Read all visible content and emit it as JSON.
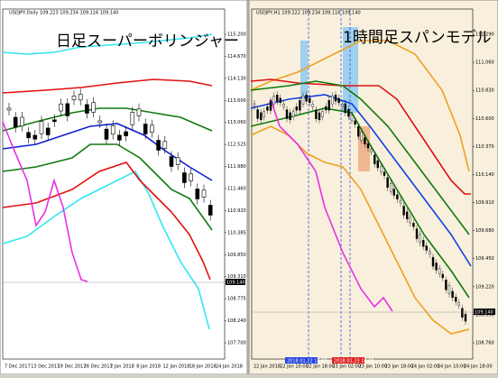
{
  "left": {
    "header": "USDJPY,Daily 109.223 109.234 109.116 109.140",
    "title": "日足スーパーボリンジャー",
    "yticks": [
      "115.200",
      "114.670",
      "114.130",
      "113.600",
      "113.060",
      "112.525",
      "111.980",
      "111.460",
      "110.920",
      "110.385",
      "109.850",
      "109.310",
      "108.775",
      "108.240",
      "107.700"
    ],
    "price": "109.140",
    "xticks": [
      "7 Dec 2017",
      "13 Dec 2017",
      "19 Dec 2017",
      "26 Dec 2017",
      "2 Jan 2018",
      "8 Jan 2018",
      "12 Jan 2018",
      "18 Jan 2018",
      "24 Jan 2018"
    ]
  },
  "right": {
    "header": "USDJPY,H1 109.222 109.234 109.116 109.140",
    "title": "1時間足スパンモデル",
    "yticks": [
      "111.290",
      "111.060",
      "110.830",
      "110.600",
      "110.370",
      "110.140",
      "109.910",
      "109.680",
      "109.450",
      "109.220",
      "108.990",
      "108.760"
    ],
    "price": "109.140",
    "xticks": [
      "22 Jan 2018",
      "22 Jan 10:00",
      "22 Jan 18:00",
      "23 Jan 02:00",
      "23 Jan 10:00",
      "23 Jan 18:00",
      "24 Jan 02:00",
      "24 Jan 10:00",
      "24 Jan 18:00"
    ],
    "marker1": "2018.01.22 18:00",
    "marker2": "2018.01.23 18:00"
  }
}
